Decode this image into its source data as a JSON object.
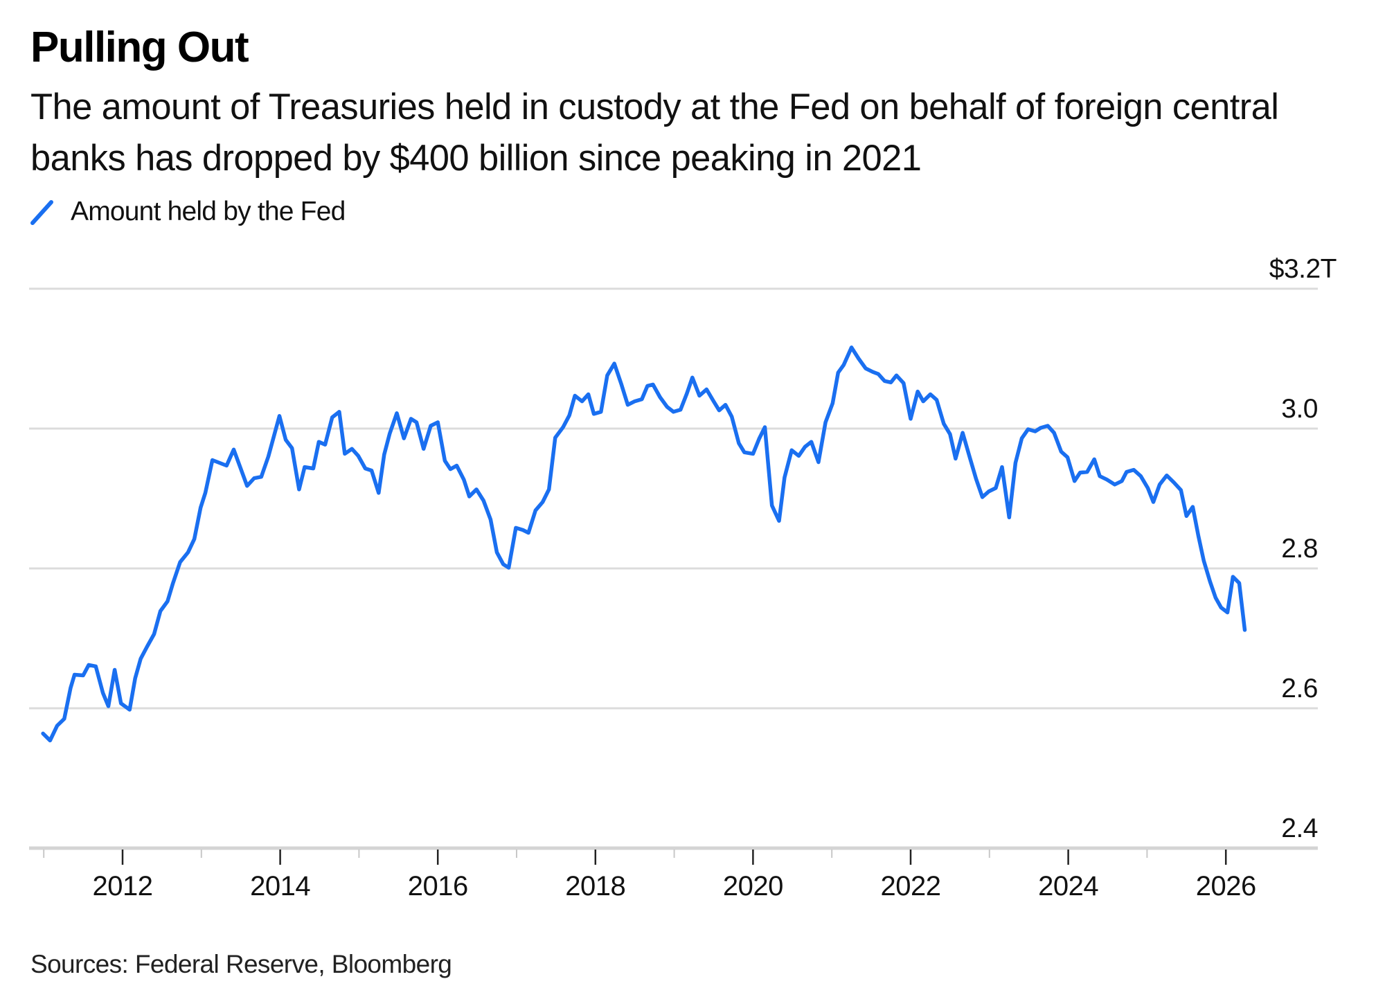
{
  "header": {
    "title": "Pulling Out",
    "subtitle": "The amount of Treasuries held in custody at the Fed on behalf of foreign central banks has dropped by $400 billion since peaking in 2021"
  },
  "legend": [
    {
      "label": "Amount held by the Fed",
      "icon": "diagonal-line-swatch",
      "color": "#1a6ff0"
    }
  ],
  "footer": {
    "source": "Sources: Federal Reserve, Bloomberg"
  },
  "chart_data": {
    "type": "line",
    "title": "Pulling Out",
    "subtitle": "The amount of Treasuries held in custody at the Fed on behalf of foreign central banks has dropped by $400 billion since peaking in 2021",
    "xlabel": "",
    "ylabel": "",
    "unit": "trillions of US dollars",
    "grid": true,
    "y_axis_side": "right",
    "legend_position": "top-left",
    "xlim": [
      2010.8,
      2027.2
    ],
    "ylim": [
      2.4,
      3.2
    ],
    "x_ticks": [
      2012,
      2014,
      2016,
      2018,
      2020,
      2022,
      2024,
      2026
    ],
    "x_tick_labels": [
      "2012",
      "2014",
      "2016",
      "2018",
      "2020",
      "2022",
      "2024",
      "2026"
    ],
    "x_minor_ticks": [
      2011,
      2013,
      2015,
      2017,
      2019,
      2021,
      2023,
      2025
    ],
    "y_ticks": [
      2.4,
      2.6,
      2.8,
      3.0,
      3.2
    ],
    "y_tick_labels": [
      "2.4",
      "2.6",
      "2.8",
      "3.0",
      "$3.2T"
    ],
    "series": [
      {
        "name": "Amount held by the Fed",
        "color": "#1a6ff0",
        "x": [
          2010.99,
          2011.08,
          2011.17,
          2011.26,
          2011.34,
          2011.39,
          2011.5,
          2011.57,
          2011.66,
          2011.75,
          2011.82,
          2011.9,
          2011.98,
          2012.09,
          2012.16,
          2012.23,
          2012.31,
          2012.4,
          2012.48,
          2012.57,
          2012.64,
          2012.73,
          2012.83,
          2012.91,
          2012.99,
          2013.05,
          2013.14,
          2013.32,
          2013.41,
          2013.58,
          2013.67,
          2013.76,
          2013.85,
          2013.99,
          2014.07,
          2014.15,
          2014.24,
          2014.31,
          2014.42,
          2014.49,
          2014.57,
          2014.66,
          2014.75,
          2014.82,
          2014.91,
          2014.99,
          2015.08,
          2015.16,
          2015.25,
          2015.32,
          2015.39,
          2015.48,
          2015.57,
          2015.66,
          2015.73,
          2015.82,
          2015.91,
          2016.0,
          2016.09,
          2016.16,
          2016.24,
          2016.33,
          2016.4,
          2016.49,
          2016.58,
          2016.67,
          2016.75,
          2016.83,
          2016.9,
          2016.99,
          2017.08,
          2017.15,
          2017.24,
          2017.33,
          2017.41,
          2017.49,
          2017.59,
          2017.67,
          2017.74,
          2017.83,
          2017.91,
          2017.98,
          2018.07,
          2018.15,
          2018.24,
          2018.33,
          2018.41,
          2018.5,
          2018.59,
          2018.66,
          2018.73,
          2018.82,
          2018.91,
          2018.99,
          2019.08,
          2019.16,
          2019.23,
          2019.32,
          2019.41,
          2019.5,
          2019.57,
          2019.65,
          2019.73,
          2019.82,
          2019.89,
          2020.0,
          2020.08,
          2020.15,
          2020.24,
          2020.33,
          2020.4,
          2020.49,
          2020.58,
          2020.66,
          2020.74,
          2020.83,
          2020.92,
          2021.01,
          2021.08,
          2021.15,
          2021.25,
          2021.34,
          2021.43,
          2021.52,
          2021.59,
          2021.67,
          2021.75,
          2021.82,
          2021.91,
          2022.0,
          2022.09,
          2022.16,
          2022.25,
          2022.33,
          2022.42,
          2022.5,
          2022.57,
          2022.66,
          2022.75,
          2022.83,
          2022.91,
          2022.99,
          2023.08,
          2023.16,
          2023.25,
          2023.33,
          2023.41,
          2023.49,
          2023.58,
          2023.65,
          2023.74,
          2023.82,
          2023.91,
          2023.99,
          2024.08,
          2024.15,
          2024.24,
          2024.33,
          2024.4,
          2024.49,
          2024.59,
          2024.68,
          2024.74,
          2024.83,
          2024.92,
          2025.01,
          2025.08,
          2025.16,
          2025.25,
          2025.34,
          2025.43,
          2025.5,
          2025.58,
          2025.65,
          2025.72,
          2025.8,
          2025.87,
          2025.94,
          2026.02,
          2026.09,
          2026.17,
          2026.24
        ],
        "values": [
          2.564,
          2.554,
          2.575,
          2.585,
          2.629,
          2.648,
          2.647,
          2.662,
          2.66,
          2.622,
          2.603,
          2.655,
          2.607,
          2.598,
          2.643,
          2.671,
          2.688,
          2.706,
          2.739,
          2.753,
          2.779,
          2.809,
          2.823,
          2.842,
          2.887,
          2.908,
          2.955,
          2.947,
          2.97,
          2.918,
          2.929,
          2.931,
          2.96,
          3.018,
          2.984,
          2.972,
          2.913,
          2.945,
          2.943,
          2.981,
          2.977,
          3.016,
          3.024,
          2.964,
          2.971,
          2.961,
          2.943,
          2.94,
          2.908,
          2.963,
          2.993,
          3.022,
          2.986,
          3.014,
          3.009,
          2.971,
          3.004,
          3.009,
          2.954,
          2.942,
          2.947,
          2.927,
          2.903,
          2.913,
          2.897,
          2.87,
          2.823,
          2.806,
          2.801,
          2.858,
          2.855,
          2.851,
          2.883,
          2.895,
          2.913,
          2.987,
          3.002,
          3.019,
          3.047,
          3.039,
          3.049,
          3.021,
          3.024,
          3.076,
          3.093,
          3.063,
          3.034,
          3.039,
          3.042,
          3.061,
          3.063,
          3.045,
          3.031,
          3.024,
          3.027,
          3.05,
          3.073,
          3.047,
          3.056,
          3.039,
          3.026,
          3.034,
          3.017,
          2.979,
          2.966,
          2.964,
          2.986,
          3.002,
          2.89,
          2.868,
          2.93,
          2.969,
          2.961,
          2.974,
          2.981,
          2.952,
          3.009,
          3.036,
          3.08,
          3.091,
          3.116,
          3.1,
          3.086,
          3.081,
          3.078,
          3.068,
          3.066,
          3.076,
          3.065,
          3.014,
          3.053,
          3.039,
          3.049,
          3.041,
          3.007,
          2.992,
          2.957,
          2.994,
          2.959,
          2.928,
          2.902,
          2.91,
          2.915,
          2.945,
          2.873,
          2.951,
          2.986,
          2.999,
          2.996,
          3.001,
          3.004,
          2.994,
          2.967,
          2.959,
          2.925,
          2.937,
          2.938,
          2.956,
          2.932,
          2.927,
          2.92,
          2.925,
          2.938,
          2.941,
          2.932,
          2.915,
          2.895,
          2.92,
          2.933,
          2.923,
          2.912,
          2.875,
          2.888,
          2.847,
          2.811,
          2.781,
          2.758,
          2.744,
          2.737,
          2.788,
          2.779,
          2.712
        ]
      }
    ]
  }
}
